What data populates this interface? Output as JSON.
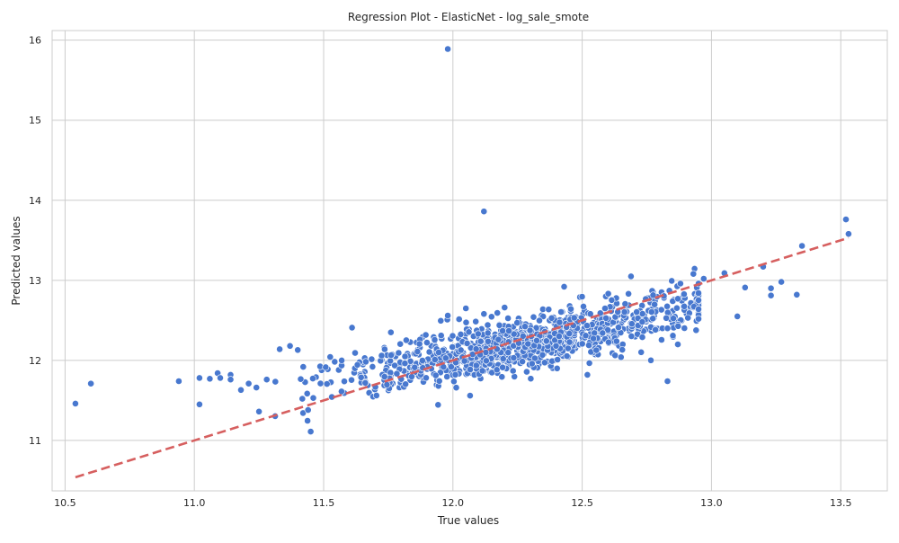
{
  "chart_data": {
    "type": "scatter",
    "title": "Regression Plot - ElasticNet - log_sale_smote",
    "xlabel": "True values",
    "ylabel": "Predicted values",
    "xlim": [
      10.45,
      13.68
    ],
    "ylim": [
      10.37,
      16.12
    ],
    "xticks": [
      10.5,
      11.0,
      11.5,
      12.0,
      12.5,
      13.0,
      13.5
    ],
    "yticks": [
      11,
      12,
      13,
      14,
      15,
      16
    ],
    "xtick_labels": [
      "10.5",
      "11.0",
      "11.5",
      "12.0",
      "12.5",
      "13.0",
      "13.5"
    ],
    "ytick_labels": [
      "11",
      "12",
      "13",
      "14",
      "15",
      "16"
    ],
    "grid": true,
    "point_color": "#4878cf",
    "point_edge_color": "#ffffff",
    "line_color": "#d65f5f",
    "reference_line": {
      "style": "dashed",
      "x": [
        10.54,
        13.53
      ],
      "y": [
        10.54,
        13.53
      ]
    },
    "scatter_generation": {
      "n": 1100,
      "center_x": 12.3,
      "sd_x": 0.38,
      "slope": 0.62,
      "intercept": 4.6,
      "noise": 0.16,
      "seed": 7
    },
    "points": [
      [
        10.54,
        11.46
      ],
      [
        10.6,
        11.71
      ],
      [
        10.94,
        11.74
      ],
      [
        11.02,
        11.45
      ],
      [
        11.02,
        11.78
      ],
      [
        11.06,
        11.77
      ],
      [
        11.09,
        11.84
      ],
      [
        11.1,
        11.78
      ],
      [
        11.14,
        11.82
      ],
      [
        11.14,
        11.76
      ],
      [
        11.18,
        11.63
      ],
      [
        11.21,
        11.71
      ],
      [
        11.24,
        11.66
      ],
      [
        11.28,
        11.76
      ],
      [
        11.33,
        12.14
      ],
      [
        11.37,
        12.18
      ],
      [
        11.4,
        12.13
      ],
      [
        11.45,
        11.11
      ],
      [
        11.44,
        11.38
      ],
      [
        11.46,
        11.53
      ],
      [
        11.57,
        12.0
      ],
      [
        11.61,
        12.41
      ],
      [
        11.76,
        12.35
      ],
      [
        11.98,
        12.56
      ],
      [
        11.98,
        15.89
      ],
      [
        12.12,
        13.86
      ],
      [
        12.05,
        12.65
      ],
      [
        12.12,
        12.58
      ],
      [
        12.2,
        12.66
      ],
      [
        12.43,
        12.92
      ],
      [
        12.52,
        11.82
      ],
      [
        12.65,
        12.04
      ],
      [
        12.83,
        11.74
      ],
      [
        12.81,
        12.4
      ],
      [
        12.83,
        12.4
      ],
      [
        12.87,
        12.2
      ],
      [
        12.87,
        12.77
      ],
      [
        12.88,
        12.96
      ],
      [
        12.93,
        13.08
      ],
      [
        12.97,
        13.02
      ],
      [
        13.05,
        13.09
      ],
      [
        13.1,
        12.55
      ],
      [
        13.13,
        12.91
      ],
      [
        13.2,
        13.17
      ],
      [
        13.23,
        12.9
      ],
      [
        13.23,
        12.81
      ],
      [
        13.27,
        12.98
      ],
      [
        13.33,
        12.82
      ],
      [
        13.35,
        13.43
      ],
      [
        13.52,
        13.76
      ],
      [
        13.53,
        13.58
      ]
    ]
  }
}
